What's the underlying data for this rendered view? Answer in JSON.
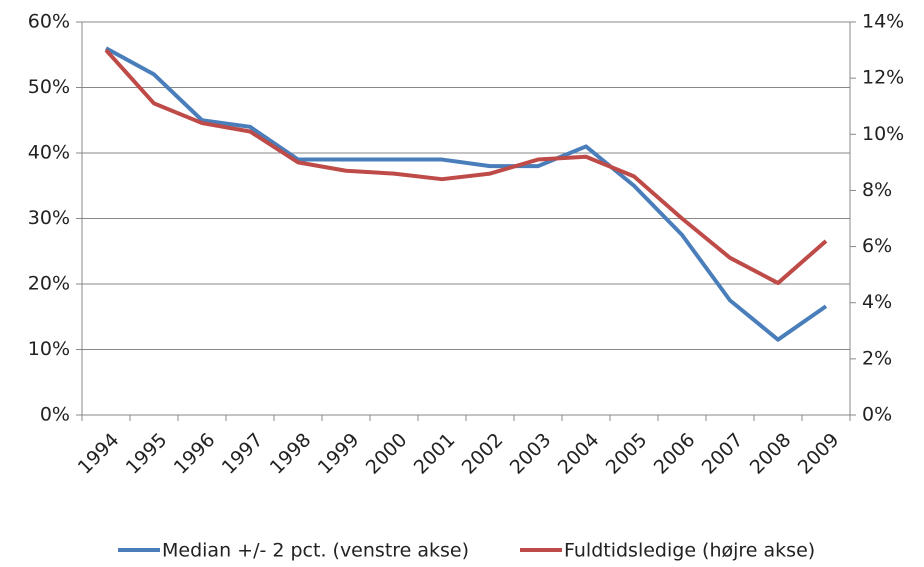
{
  "chart_data": {
    "type": "line",
    "categories": [
      "1994",
      "1995",
      "1996",
      "1997",
      "1998",
      "1999",
      "2000",
      "2001",
      "2002",
      "2003",
      "2004",
      "2005",
      "2006",
      "2007",
      "2008",
      "2009"
    ],
    "series": [
      {
        "name": "Median +/- 2 pct. (venstre akse)",
        "color": "#4a7ebb",
        "values": [
          56,
          52,
          45,
          44,
          39,
          39,
          39,
          39,
          38,
          38,
          41,
          35,
          27.5,
          17.5,
          11.5,
          16.6
        ]
      },
      {
        "name": "Fuldtidsledige (højre akse)",
        "color": "#be4b48",
        "axis": "y2",
        "values": [
          13.0,
          11.1,
          10.4,
          10.1,
          9.0,
          8.7,
          8.6,
          8.4,
          8.6,
          9.1,
          9.2,
          8.5,
          7.0,
          5.6,
          4.7,
          6.2
        ]
      }
    ],
    "ylim": [
      0,
      60
    ],
    "yticks": [
      {
        "value": 0,
        "label": "0%"
      },
      {
        "value": 10,
        "label": "10%"
      },
      {
        "value": 20,
        "label": "20%"
      },
      {
        "value": 30,
        "label": "30%"
      },
      {
        "value": 40,
        "label": "40%"
      },
      {
        "value": 50,
        "label": "50%"
      },
      {
        "value": 60,
        "label": "60%"
      }
    ],
    "y2lim": [
      0,
      14
    ],
    "y2ticks": [
      {
        "value": 0,
        "label": "0%"
      },
      {
        "value": 2,
        "label": "2%"
      },
      {
        "value": 4,
        "label": "4%"
      },
      {
        "value": 6,
        "label": "6%"
      },
      {
        "value": 8,
        "label": "8%"
      },
      {
        "value": 10,
        "label": "10%"
      },
      {
        "value": 12,
        "label": "12%"
      },
      {
        "value": 14,
        "label": "14%"
      }
    ],
    "grid": true,
    "legend": "bottom"
  }
}
